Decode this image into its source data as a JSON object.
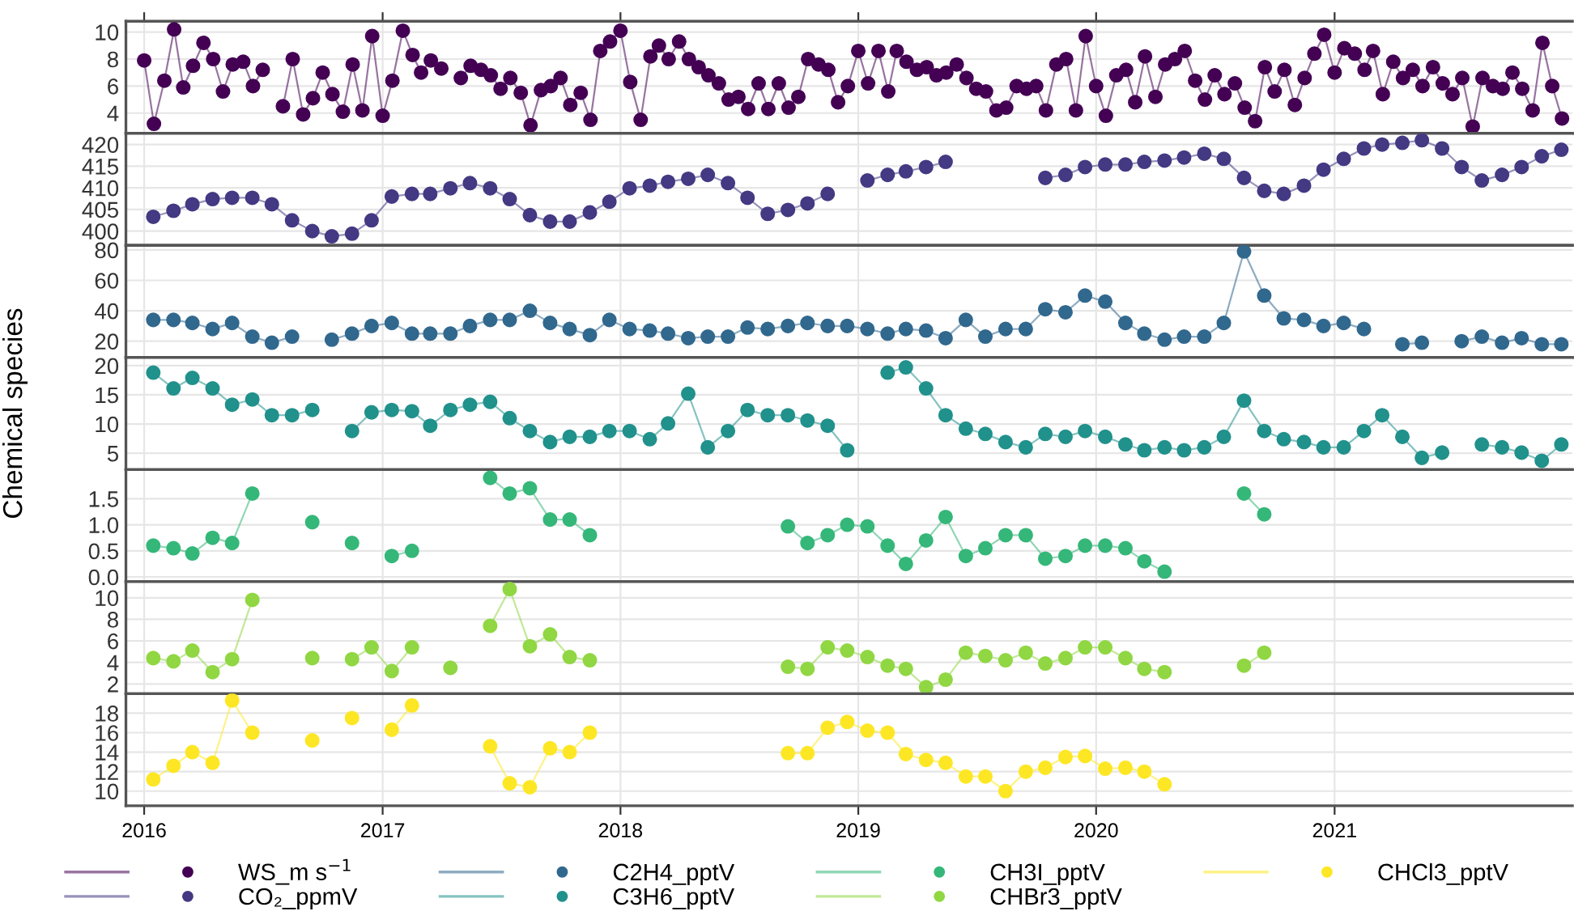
{
  "chart_data": [
    {
      "type": "line",
      "marker": "circle",
      "grid": true,
      "legend": "bottom",
      "tick_labels": "y",
      "xlim": [
        "2015-12-04",
        "2022-01-01"
      ],
      "xticks": [
        "2016",
        "2017",
        "2018",
        "2019",
        "2020",
        "2021"
      ],
      "ylim": [
        2.5,
        10.8
      ],
      "yticks": [
        4,
        6,
        8,
        10
      ],
      "series": [
        {
          "name": "WS_m s$^{−1}$",
          "color": "#440154",
          "x": [
            "2016-01-01",
            "2016-01-16",
            "2016-02-01",
            "2016-02-16",
            "2016-03-01",
            "2016-03-16",
            "2016-04-01",
            "2016-04-16",
            "2016-05-01",
            "2016-05-16",
            "2016-06-01",
            "2016-06-16",
            "2016-07-01",
            "2016-07-16",
            "2016-08-01",
            "2016-08-16",
            "2016-09-01",
            "2016-09-16",
            "2016-10-01",
            "2016-10-16",
            "2016-11-01",
            "2016-11-16",
            "2016-12-01",
            "2016-12-16",
            "2017-01-01",
            "2017-01-16",
            "2017-02-01",
            "2017-02-16",
            "2017-03-01",
            "2017-03-16",
            "2017-04-01",
            "2017-04-16",
            "2017-05-01",
            "2017-05-16",
            "2017-06-01",
            "2017-06-16",
            "2017-07-01",
            "2017-07-16",
            "2017-08-01",
            "2017-08-16",
            "2017-09-01",
            "2017-09-16",
            "2017-10-01",
            "2017-10-16",
            "2017-11-01",
            "2017-11-16",
            "2017-12-01",
            "2017-12-16",
            "2018-01-01",
            "2018-01-16",
            "2018-02-01",
            "2018-02-16",
            "2018-03-01",
            "2018-03-16",
            "2018-04-01",
            "2018-04-16",
            "2018-05-01",
            "2018-05-16",
            "2018-06-01",
            "2018-06-16",
            "2018-07-01",
            "2018-07-16",
            "2018-08-01",
            "2018-08-16",
            "2018-09-01",
            "2018-09-16",
            "2018-10-01",
            "2018-10-16",
            "2018-11-01",
            "2018-11-16",
            "2018-12-01",
            "2018-12-16",
            "2019-01-01",
            "2019-01-16",
            "2019-02-01",
            "2019-02-16",
            "2019-03-01",
            "2019-03-16",
            "2019-04-01",
            "2019-04-16",
            "2019-05-01",
            "2019-05-16",
            "2019-06-01",
            "2019-06-16",
            "2019-07-01",
            "2019-07-16",
            "2019-08-01",
            "2019-08-16",
            "2019-09-01",
            "2019-09-16",
            "2019-10-01",
            "2019-10-16",
            "2019-11-01",
            "2019-11-16",
            "2019-12-01",
            "2019-12-16",
            "2020-01-01",
            "2020-01-16",
            "2020-02-01",
            "2020-02-16",
            "2020-03-01",
            "2020-03-16",
            "2020-04-01",
            "2020-04-16",
            "2020-05-01",
            "2020-05-16",
            "2020-06-01",
            "2020-06-16",
            "2020-07-01",
            "2020-07-16",
            "2020-08-01",
            "2020-08-16",
            "2020-09-01",
            "2020-09-16",
            "2020-10-01",
            "2020-10-16",
            "2020-11-01",
            "2020-11-16",
            "2020-12-01",
            "2020-12-16",
            "2021-01-01",
            "2021-01-16",
            "2021-02-01",
            "2021-02-16",
            "2021-03-01",
            "2021-03-16",
            "2021-04-01",
            "2021-04-16",
            "2021-05-01",
            "2021-05-16",
            "2021-06-01",
            "2021-06-16",
            "2021-07-01",
            "2021-07-16",
            "2021-08-01",
            "2021-08-16",
            "2021-09-01",
            "2021-09-16",
            "2021-10-01",
            "2021-10-16",
            "2021-11-01",
            "2021-11-16",
            "2021-12-01",
            "2021-12-16"
          ],
          "values": [
            7.9,
            3.2,
            6.4,
            10.2,
            5.9,
            7.5,
            9.2,
            8.0,
            5.6,
            7.6,
            7.8,
            6.0,
            7.2,
            null,
            4.5,
            8.0,
            3.9,
            5.1,
            7.0,
            5.4,
            4.1,
            7.6,
            4.2,
            9.7,
            3.8,
            6.4,
            10.1,
            8.3,
            7.0,
            7.9,
            7.3,
            null,
            6.6,
            7.5,
            7.2,
            6.8,
            5.8,
            6.6,
            5.5,
            3.1,
            5.7,
            6.0,
            6.6,
            4.6,
            5.5,
            3.5,
            8.6,
            9.3,
            10.1,
            6.3,
            3.5,
            8.2,
            9.0,
            8.0,
            9.3,
            8.0,
            7.4,
            6.8,
            6.2,
            5.0,
            5.2,
            4.3,
            6.2,
            4.3,
            6.2,
            4.4,
            5.2,
            8.0,
            7.6,
            7.2,
            4.8,
            6.0,
            8.6,
            6.2,
            8.6,
            5.6,
            8.6,
            7.8,
            7.2,
            7.4,
            6.8,
            7.0,
            7.6,
            6.6,
            5.8,
            5.6,
            4.2,
            4.4,
            6.0,
            5.8,
            6.0,
            4.2,
            7.6,
            8.0,
            4.2,
            9.7,
            6.0,
            3.8,
            6.8,
            7.2,
            4.8,
            8.2,
            5.2,
            7.6,
            8.0,
            8.6,
            6.4,
            5.0,
            6.8,
            5.4,
            6.2,
            4.4,
            3.4,
            7.4,
            5.6,
            7.2,
            4.6,
            6.6,
            8.4,
            9.8,
            7.0,
            8.8,
            8.4,
            7.2,
            8.6,
            5.4,
            7.8,
            6.6,
            7.2,
            6.0,
            7.4,
            6.2,
            5.4,
            6.6,
            3.0,
            6.6,
            6.0,
            5.8,
            7.0,
            5.8,
            4.2,
            9.2,
            6.0,
            3.6
          ]
        }
      ]
    },
    {
      "type": "line",
      "marker": "circle",
      "grid": true,
      "legend": "bottom",
      "tick_labels": "y",
      "xlim": [
        "2015-12-04",
        "2022-01-01"
      ],
      "xticks": [
        "2016",
        "2017",
        "2018",
        "2019",
        "2020",
        "2021"
      ],
      "ylim": [
        396.7,
        422.6
      ],
      "yticks": [
        400,
        405,
        410,
        415,
        420
      ],
      "series": [
        {
          "name": "CO₂_ppmV",
          "color": "#443983",
          "x": [
            "2016-01-15",
            "2016-02-15",
            "2016-03-15",
            "2016-04-15",
            "2016-05-15",
            "2016-06-15",
            "2016-07-15",
            "2016-08-15",
            "2016-09-15",
            "2016-10-15",
            "2016-11-15",
            "2016-12-15",
            "2017-01-15",
            "2017-02-15",
            "2017-03-15",
            "2017-04-15",
            "2017-05-15",
            "2017-06-15",
            "2017-07-15",
            "2017-08-15",
            "2017-09-15",
            "2017-10-15",
            "2017-11-15",
            "2017-12-15",
            "2018-01-15",
            "2018-02-15",
            "2018-03-15",
            "2018-04-15",
            "2018-05-15",
            "2018-06-15",
            "2018-07-15",
            "2018-08-15",
            "2018-09-15",
            "2018-10-15",
            "2018-11-15",
            "2018-12-15",
            "2019-01-15",
            "2019-02-15",
            "2019-03-15",
            "2019-04-15",
            "2019-05-15",
            "2019-06-15",
            "2019-07-15",
            "2019-08-15",
            "2019-09-15",
            "2019-10-15",
            "2019-11-15",
            "2019-12-15",
            "2020-01-15",
            "2020-02-15",
            "2020-03-15",
            "2020-04-15",
            "2020-05-15",
            "2020-06-15",
            "2020-07-15",
            "2020-08-15",
            "2020-09-15",
            "2020-10-15",
            "2020-11-15",
            "2020-12-15",
            "2021-01-15",
            "2021-02-15",
            "2021-03-15",
            "2021-04-15",
            "2021-05-15",
            "2021-06-15",
            "2021-07-15",
            "2021-08-15",
            "2021-09-15",
            "2021-10-15",
            "2021-11-15",
            "2021-12-15"
          ],
          "values": [
            403.3,
            404.7,
            406.2,
            407.4,
            407.7,
            407.7,
            406.2,
            402.5,
            400,
            398.8,
            399.4,
            402.5,
            408,
            408.6,
            408.6,
            409.9,
            411.1,
            409.9,
            407.4,
            403.7,
            402.2,
            402.2,
            404.3,
            406.8,
            409.9,
            410.5,
            411.4,
            412.1,
            413,
            411.1,
            407.7,
            404,
            404.9,
            406.4,
            408.6,
            null,
            411.7,
            413,
            413.8,
            414.8,
            416,
            null,
            null,
            null,
            null,
            412.3,
            413,
            414.8,
            415.4,
            415.4,
            416,
            416.3,
            417,
            417.9,
            416.7,
            412.3,
            409.3,
            408.6,
            410.5,
            414.2,
            416.7,
            419.1,
            420,
            420.4,
            421,
            419.1,
            414.8,
            411.7,
            413,
            414.8,
            417.3,
            418.8
          ]
        }
      ]
    },
    {
      "type": "line",
      "marker": "circle",
      "grid": true,
      "legend": "bottom",
      "tick_labels": "y",
      "xlim": [
        "2015-12-04",
        "2022-01-01"
      ],
      "xticks": [
        "2016",
        "2017",
        "2018",
        "2019",
        "2020",
        "2021"
      ],
      "ylim": [
        9.3,
        83
      ],
      "yticks": [
        20,
        40,
        60,
        80
      ],
      "series": [
        {
          "name": "C2H4_pptV",
          "color": "#31688e",
          "x": [
            "2016-01-15",
            "2016-02-15",
            "2016-03-15",
            "2016-04-15",
            "2016-05-15",
            "2016-06-15",
            "2016-07-15",
            "2016-08-15",
            "2016-09-15",
            "2016-10-15",
            "2016-11-15",
            "2016-12-15",
            "2017-01-15",
            "2017-02-15",
            "2017-03-15",
            "2017-04-15",
            "2017-05-15",
            "2017-06-15",
            "2017-07-15",
            "2017-08-15",
            "2017-09-15",
            "2017-10-15",
            "2017-11-15",
            "2017-12-15",
            "2018-01-15",
            "2018-02-15",
            "2018-03-15",
            "2018-04-15",
            "2018-05-15",
            "2018-06-15",
            "2018-07-15",
            "2018-08-15",
            "2018-09-15",
            "2018-10-15",
            "2018-11-15",
            "2018-12-15",
            "2019-01-15",
            "2019-02-15",
            "2019-03-15",
            "2019-04-15",
            "2019-05-15",
            "2019-06-15",
            "2019-07-15",
            "2019-08-15",
            "2019-09-15",
            "2019-10-15",
            "2019-11-15",
            "2019-12-15",
            "2020-01-15",
            "2020-02-15",
            "2020-03-15",
            "2020-04-15",
            "2020-05-15",
            "2020-06-15",
            "2020-07-15",
            "2020-08-15",
            "2020-09-15",
            "2020-10-15",
            "2020-11-15",
            "2020-12-15",
            "2021-01-15",
            "2021-02-15",
            "2021-03-15",
            "2021-04-15",
            "2021-05-15",
            "2021-06-15",
            "2021-07-15",
            "2021-08-15",
            "2021-09-15",
            "2021-10-15",
            "2021-11-15",
            "2021-12-15"
          ],
          "values": [
            34,
            34,
            32,
            28,
            32,
            23,
            19,
            23,
            null,
            21,
            25,
            30,
            32,
            25,
            25,
            25,
            30,
            34,
            34,
            40,
            32,
            28,
            24,
            34,
            28,
            27,
            25,
            22,
            23,
            23,
            29,
            28,
            30,
            32,
            30,
            30,
            28,
            25,
            28,
            27,
            22,
            34,
            23,
            28,
            28,
            41,
            39,
            50,
            46,
            32,
            25,
            21,
            23,
            23,
            32,
            79,
            50,
            35,
            34,
            30,
            32,
            28,
            null,
            18,
            19,
            null,
            20,
            23,
            19,
            22,
            18,
            18
          ]
        }
      ]
    },
    {
      "type": "line",
      "marker": "circle",
      "grid": true,
      "legend": "bottom",
      "tick_labels": "y",
      "ylabel": "Chemical species",
      "xlim": [
        "2015-12-04",
        "2022-01-01"
      ],
      "xticks": [
        "2016",
        "2017",
        "2018",
        "2019",
        "2020",
        "2021"
      ],
      "ylim": [
        2.2,
        21.4
      ],
      "yticks": [
        5,
        10,
        15,
        20
      ],
      "series": [
        {
          "name": "C3H6_pptV",
          "color": "#21918c",
          "x": [
            "2016-01-15",
            "2016-02-15",
            "2016-03-15",
            "2016-04-15",
            "2016-05-15",
            "2016-06-15",
            "2016-07-15",
            "2016-08-15",
            "2016-09-15",
            "2016-10-15",
            "2016-11-15",
            "2016-12-15",
            "2017-01-15",
            "2017-02-15",
            "2017-03-15",
            "2017-04-15",
            "2017-05-15",
            "2017-06-15",
            "2017-07-15",
            "2017-08-15",
            "2017-09-15",
            "2017-10-15",
            "2017-11-15",
            "2017-12-15",
            "2018-01-15",
            "2018-02-15",
            "2018-03-15",
            "2018-04-15",
            "2018-05-15",
            "2018-06-15",
            "2018-07-15",
            "2018-08-15",
            "2018-09-15",
            "2018-10-15",
            "2018-11-15",
            "2018-12-15",
            "2019-01-15",
            "2019-02-15",
            "2019-03-15",
            "2019-04-15",
            "2019-05-15",
            "2019-06-15",
            "2019-07-15",
            "2019-08-15",
            "2019-09-15",
            "2019-10-15",
            "2019-11-15",
            "2019-12-15",
            "2020-01-15",
            "2020-02-15",
            "2020-03-15",
            "2020-04-15",
            "2020-05-15",
            "2020-06-15",
            "2020-07-15",
            "2020-08-15",
            "2020-09-15",
            "2020-10-15",
            "2020-11-15",
            "2020-12-15",
            "2021-01-15",
            "2021-02-15",
            "2021-03-15",
            "2021-04-15",
            "2021-05-15",
            "2021-06-15",
            "2021-07-15",
            "2021-08-15",
            "2021-09-15",
            "2021-10-15",
            "2021-11-15",
            "2021-12-15"
          ],
          "values": [
            18.8,
            16.1,
            17.9,
            16.1,
            13.3,
            14.2,
            11.5,
            11.5,
            12.4,
            null,
            8.8,
            12,
            12.4,
            12.2,
            9.7,
            12.4,
            13.3,
            13.8,
            11,
            8.8,
            6.9,
            7.8,
            7.8,
            8.8,
            8.8,
            7.4,
            10.1,
            15.2,
            6,
            8.8,
            12.4,
            11.5,
            11.5,
            10.6,
            9.7,
            5.5,
            null,
            18.8,
            19.7,
            16.1,
            11.5,
            9.2,
            8.3,
            6.9,
            6,
            8.3,
            7.8,
            8.8,
            7.8,
            6.5,
            5.5,
            6,
            5.5,
            6,
            7.8,
            14,
            8.8,
            7.4,
            6.9,
            6,
            6,
            8.8,
            11.5,
            7.8,
            4.2,
            5.1,
            null,
            6.5,
            6,
            5.1,
            3.7,
            6.5
          ]
        }
      ]
    },
    {
      "type": "line",
      "marker": "circle",
      "grid": true,
      "legend": "bottom",
      "tick_labels": "y",
      "xlim": [
        "2015-12-04",
        "2022-01-01"
      ],
      "xticks": [
        "2016",
        "2017",
        "2018",
        "2019",
        "2020",
        "2021"
      ],
      "ylim": [
        -0.09,
        2.06
      ],
      "yticks": [
        {
          "value": 0,
          "label": "0.0"
        },
        {
          "value": 0.5,
          "label": "0.5"
        },
        {
          "value": 1,
          "label": "1.0"
        },
        {
          "value": 1.5,
          "label": "1.5"
        }
      ],
      "series": [
        {
          "name": "CH3I_pptV",
          "color": "#35b779",
          "x": [
            "2016-01-15",
            "2016-02-15",
            "2016-03-15",
            "2016-04-15",
            "2016-05-15",
            "2016-06-15",
            "2016-07-15",
            "2016-08-15",
            "2016-09-15",
            "2016-10-15",
            "2016-11-15",
            "2016-12-15",
            "2017-01-15",
            "2017-02-15",
            "2017-03-15",
            "2017-04-15",
            "2017-05-15",
            "2017-06-15",
            "2017-07-15",
            "2017-08-15",
            "2017-09-15",
            "2017-10-15",
            "2017-11-15",
            "2017-12-15",
            "2018-01-15",
            "2018-02-15",
            "2018-03-15",
            "2018-04-15",
            "2018-05-15",
            "2018-06-15",
            "2018-07-15",
            "2018-08-15",
            "2018-09-15",
            "2018-10-15",
            "2018-11-15",
            "2018-12-15",
            "2019-01-15",
            "2019-02-15",
            "2019-03-15",
            "2019-04-15",
            "2019-05-15",
            "2019-06-15",
            "2019-07-15",
            "2019-08-15",
            "2019-09-15",
            "2019-10-15",
            "2019-11-15",
            "2019-12-15",
            "2020-01-15",
            "2020-02-15",
            "2020-03-15",
            "2020-04-15",
            "2020-05-15",
            "2020-06-15",
            "2020-07-15",
            "2020-08-15",
            "2020-09-15"
          ],
          "values": [
            0.6,
            0.55,
            0.45,
            0.75,
            0.65,
            1.6,
            null,
            null,
            1.05,
            null,
            0.65,
            null,
            0.4,
            0.5,
            null,
            null,
            null,
            1.9,
            1.6,
            1.7,
            1.1,
            1.1,
            0.8,
            null,
            null,
            null,
            null,
            null,
            null,
            null,
            null,
            null,
            0.97,
            0.65,
            0.8,
            1.0,
            0.97,
            0.6,
            0.25,
            0.7,
            1.15,
            0.4,
            0.55,
            0.8,
            0.8,
            0.35,
            0.4,
            0.6,
            0.6,
            0.55,
            0.3,
            0.1,
            null,
            null,
            null,
            1.6,
            1.2
          ]
        }
      ]
    },
    {
      "type": "line",
      "marker": "circle",
      "grid": true,
      "legend": "bottom",
      "tick_labels": "y",
      "xlim": [
        "2015-12-04",
        "2022-01-01"
      ],
      "xticks": [
        "2016",
        "2017",
        "2018",
        "2019",
        "2020",
        "2021"
      ],
      "ylim": [
        1.1,
        11.5
      ],
      "yticks": [
        2,
        4,
        6,
        8,
        10
      ],
      "series": [
        {
          "name": "CHBr3_pptV",
          "color": "#90d743",
          "x": [
            "2016-01-15",
            "2016-02-15",
            "2016-03-15",
            "2016-04-15",
            "2016-05-15",
            "2016-06-15",
            "2016-07-15",
            "2016-08-15",
            "2016-09-15",
            "2016-10-15",
            "2016-11-15",
            "2016-12-15",
            "2017-01-15",
            "2017-02-15",
            "2017-03-15",
            "2017-04-15",
            "2017-05-15",
            "2017-06-15",
            "2017-07-15",
            "2017-08-15",
            "2017-09-15",
            "2017-10-15",
            "2017-11-15",
            "2017-12-15",
            "2018-01-15",
            "2018-02-15",
            "2018-03-15",
            "2018-04-15",
            "2018-05-15",
            "2018-06-15",
            "2018-07-15",
            "2018-08-15",
            "2018-09-15",
            "2018-10-15",
            "2018-11-15",
            "2018-12-15",
            "2019-01-15",
            "2019-02-15",
            "2019-03-15",
            "2019-04-15",
            "2019-05-15",
            "2019-06-15",
            "2019-07-15",
            "2019-08-15",
            "2019-09-15",
            "2019-10-15",
            "2019-11-15",
            "2019-12-15",
            "2020-01-15",
            "2020-02-15",
            "2020-03-15",
            "2020-04-15",
            "2020-05-15",
            "2020-06-15",
            "2020-07-15",
            "2020-08-15",
            "2020-09-15"
          ],
          "values": [
            4.4,
            4.1,
            5.1,
            3.1,
            4.3,
            9.8,
            null,
            null,
            4.4,
            null,
            4.3,
            5.4,
            3.2,
            5.4,
            null,
            3.5,
            null,
            7.4,
            10.8,
            5.5,
            6.6,
            4.5,
            4.2,
            null,
            null,
            null,
            null,
            null,
            null,
            null,
            null,
            null,
            3.6,
            3.4,
            5.4,
            5.1,
            4.5,
            3.7,
            3.4,
            1.7,
            2.4,
            4.9,
            4.6,
            4.2,
            4.9,
            3.9,
            4.4,
            5.4,
            5.4,
            4.4,
            3.4,
            3.1,
            null,
            null,
            null,
            3.7,
            4.9
          ]
        }
      ]
    },
    {
      "type": "line",
      "marker": "circle",
      "grid": true,
      "legend": "bottom",
      "xlim": [
        "2015-12-04",
        "2022-01-01"
      ],
      "xticks": [
        "2016",
        "2017",
        "2018",
        "2019",
        "2020",
        "2021"
      ],
      "ylim": [
        8.5,
        20.0
      ],
      "yticks": [
        10,
        12,
        14,
        16,
        18
      ],
      "series": [
        {
          "name": "CHCl3_pptV",
          "color": "#fde725",
          "x": [
            "2016-01-15",
            "2016-02-15",
            "2016-03-15",
            "2016-04-15",
            "2016-05-15",
            "2016-06-15",
            "2016-07-15",
            "2016-08-15",
            "2016-09-15",
            "2016-10-15",
            "2016-11-15",
            "2016-12-15",
            "2017-01-15",
            "2017-02-15",
            "2017-03-15",
            "2017-04-15",
            "2017-05-15",
            "2017-06-15",
            "2017-07-15",
            "2017-08-15",
            "2017-09-15",
            "2017-10-15",
            "2017-11-15",
            "2017-12-15",
            "2018-01-15",
            "2018-02-15",
            "2018-03-15",
            "2018-04-15",
            "2018-05-15",
            "2018-06-15",
            "2018-07-15",
            "2018-08-15",
            "2018-09-15",
            "2018-10-15",
            "2018-11-15",
            "2018-12-15",
            "2019-01-15",
            "2019-02-15",
            "2019-03-15",
            "2019-04-15",
            "2019-05-15",
            "2019-06-15",
            "2019-07-15",
            "2019-08-15",
            "2019-09-15",
            "2019-10-15",
            "2019-11-15",
            "2019-12-15",
            "2020-01-15",
            "2020-02-15",
            "2020-03-15",
            "2020-04-15"
          ],
          "values": [
            11.2,
            12.6,
            14.0,
            12.9,
            19.3,
            16.0,
            null,
            null,
            15.2,
            null,
            17.5,
            null,
            16.3,
            18.8,
            null,
            null,
            null,
            14.6,
            10.8,
            10.4,
            14.4,
            14.0,
            16.0,
            null,
            null,
            null,
            null,
            null,
            null,
            null,
            null,
            null,
            13.9,
            13.9,
            16.5,
            17.1,
            16.2,
            16.0,
            13.8,
            13.2,
            12.9,
            11.5,
            11.5,
            10,
            12.0,
            12.4,
            13.5,
            13.6,
            12.3,
            12.4,
            12.0,
            10.7
          ]
        }
      ]
    }
  ]
}
